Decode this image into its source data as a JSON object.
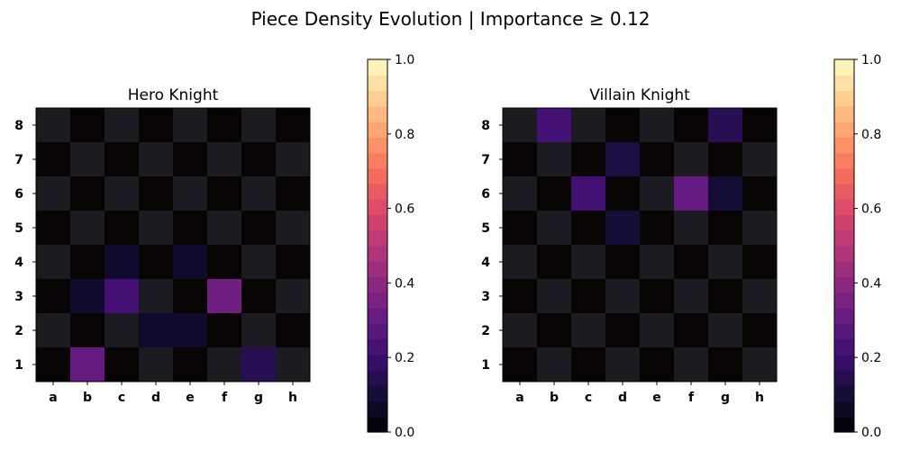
{
  "figure_title": "Piece Density Evolution | Importance ≥ 0.12",
  "colormap": "magma",
  "chart_data": [
    {
      "type": "heatmap",
      "title": "Hero Knight",
      "x_categories": [
        "a",
        "b",
        "c",
        "d",
        "e",
        "f",
        "g",
        "h"
      ],
      "y_categories": [
        "8",
        "7",
        "6",
        "5",
        "4",
        "3",
        "2",
        "1"
      ],
      "values": [
        [
          0.0,
          0.0,
          0.0,
          0.0,
          0.0,
          0.0,
          0.0,
          0.0
        ],
        [
          0.0,
          0.0,
          0.0,
          0.0,
          0.0,
          0.0,
          0.0,
          0.0
        ],
        [
          0.0,
          0.0,
          0.0,
          0.0,
          0.0,
          0.0,
          0.0,
          0.0
        ],
        [
          0.0,
          0.0,
          0.0,
          0.0,
          0.0,
          0.0,
          0.0,
          0.0
        ],
        [
          0.0,
          0.0,
          0.08,
          0.0,
          0.08,
          0.0,
          0.0,
          0.0
        ],
        [
          0.0,
          0.08,
          0.22,
          0.0,
          0.0,
          0.33,
          0.0,
          0.0
        ],
        [
          0.0,
          0.0,
          0.0,
          0.08,
          0.08,
          0.0,
          0.0,
          0.0
        ],
        [
          0.0,
          0.3,
          0.0,
          0.0,
          0.0,
          0.0,
          0.15,
          0.0
        ]
      ],
      "colorbar": {
        "range": [
          0.0,
          1.0
        ],
        "ticks": [
          "0.0",
          "0.2",
          "0.4",
          "0.6",
          "0.8",
          "1.0"
        ]
      }
    },
    {
      "type": "heatmap",
      "title": "Villain Knight",
      "x_categories": [
        "a",
        "b",
        "c",
        "d",
        "e",
        "f",
        "g",
        "h"
      ],
      "y_categories": [
        "8",
        "7",
        "6",
        "5",
        "4",
        "3",
        "2",
        "1"
      ],
      "values": [
        [
          0.0,
          0.22,
          0.0,
          0.0,
          0.0,
          0.0,
          0.15,
          0.0
        ],
        [
          0.0,
          0.0,
          0.0,
          0.12,
          0.0,
          0.0,
          0.0,
          0.0
        ],
        [
          0.0,
          0.0,
          0.22,
          0.0,
          0.0,
          0.3,
          0.1,
          0.0
        ],
        [
          0.0,
          0.0,
          0.0,
          0.1,
          0.0,
          0.0,
          0.0,
          0.0
        ],
        [
          0.0,
          0.0,
          0.0,
          0.0,
          0.0,
          0.0,
          0.0,
          0.0
        ],
        [
          0.0,
          0.0,
          0.0,
          0.0,
          0.0,
          0.0,
          0.0,
          0.0
        ],
        [
          0.0,
          0.0,
          0.0,
          0.0,
          0.0,
          0.0,
          0.0,
          0.0
        ],
        [
          0.0,
          0.0,
          0.0,
          0.0,
          0.0,
          0.0,
          0.0,
          0.0
        ]
      ],
      "colorbar": {
        "range": [
          0.0,
          1.0
        ],
        "ticks": [
          "0.0",
          "0.2",
          "0.4",
          "0.6",
          "0.8",
          "1.0"
        ]
      }
    }
  ]
}
